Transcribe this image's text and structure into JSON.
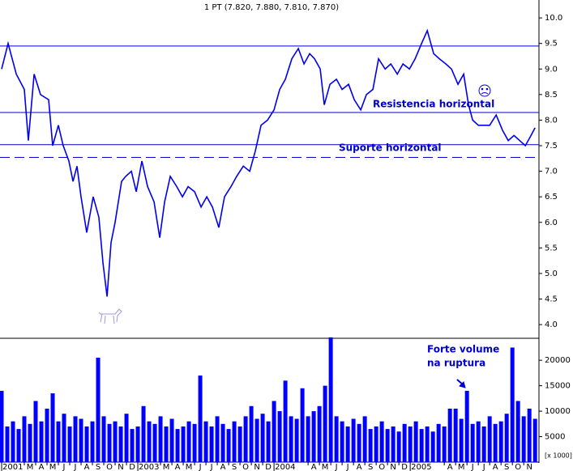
{
  "chart_data": [
    {
      "type": "line",
      "title": "1 PT (7.820, 7.880, 7.810, 7.870)",
      "color": "#0000ee",
      "x": [
        0,
        0.57,
        1.29,
        2,
        2.36,
        2.86,
        3.43,
        4.14,
        4.5,
        5,
        5.43,
        5.93,
        6.29,
        6.64,
        7,
        7.5,
        8.07,
        8.57,
        8.93,
        9.29,
        9.64,
        10,
        10.57,
        10.93,
        11.43,
        11.86,
        12.36,
        12.86,
        13.43,
        13.93,
        14.36,
        14.86,
        15.43,
        15.93,
        16.43,
        17,
        17.57,
        18.07,
        18.57,
        19.14,
        19.64,
        20.21,
        20.71,
        21.29,
        21.86,
        22.36,
        22.86,
        23.43,
        24,
        24.5,
        25,
        25.57,
        26.14,
        26.64,
        27.14,
        27.57,
        28.07,
        28.43,
        28.93,
        29.5,
        30,
        30.57,
        31.07,
        31.64,
        32.14,
        32.71,
        33.21,
        33.79,
        34.29,
        34.86,
        35.36,
        35.93,
        36.43,
        37,
        37.5,
        38.07,
        38.57,
        39.14,
        39.64,
        40.21,
        40.71,
        41.14,
        41.5,
        42,
        42.5,
        43,
        43.57,
        44.14,
        44.64,
        45.14,
        45.64,
        46.14,
        46.64,
        47
      ],
      "values": [
        9.0,
        9.5,
        8.9,
        8.6,
        7.6,
        8.9,
        8.5,
        8.4,
        7.5,
        7.9,
        7.5,
        7.2,
        6.8,
        7.1,
        6.5,
        5.8,
        6.5,
        6.1,
        5.2,
        4.55,
        5.6,
        6.0,
        6.8,
        6.9,
        7.0,
        6.6,
        7.2,
        6.7,
        6.4,
        5.7,
        6.4,
        6.9,
        6.7,
        6.5,
        6.7,
        6.6,
        6.3,
        6.5,
        6.3,
        5.9,
        6.5,
        6.7,
        6.9,
        7.1,
        7.0,
        7.4,
        7.9,
        8.0,
        8.2,
        8.6,
        8.8,
        9.2,
        9.4,
        9.1,
        9.3,
        9.2,
        9.0,
        8.3,
        8.7,
        8.8,
        8.6,
        8.7,
        8.4,
        8.2,
        8.5,
        8.6,
        9.2,
        9.0,
        9.1,
        8.9,
        9.1,
        9.0,
        9.2,
        9.5,
        9.75,
        9.3,
        9.2,
        9.1,
        9.0,
        8.7,
        8.9,
        8.3,
        8.0,
        7.9,
        7.9,
        7.9,
        8.1,
        7.8,
        7.6,
        7.7,
        7.6,
        7.5,
        7.7,
        7.85
      ],
      "xlim": [
        0,
        47.2
      ],
      "ylim": [
        3.78,
        10.35
      ],
      "yticks": [
        {
          "value": 10,
          "label": "10.0"
        },
        {
          "value": 9.5,
          "label": "9.5"
        },
        {
          "value": 9,
          "label": "9.0"
        },
        {
          "value": 8.5,
          "label": "8.5"
        },
        {
          "value": 8,
          "label": "8.0"
        },
        {
          "value": 7.5,
          "label": "7.5"
        },
        {
          "value": 7,
          "label": "7.0"
        },
        {
          "value": 6.5,
          "label": "6.5"
        },
        {
          "value": 6,
          "label": "6.0"
        },
        {
          "value": 5.5,
          "label": "5.5"
        },
        {
          "value": 5,
          "label": "5.0"
        },
        {
          "value": 4.5,
          "label": "4.5"
        },
        {
          "value": 4,
          "label": "4.0"
        }
      ],
      "reference_lines": [
        {
          "value": 9.45,
          "style": "solid"
        },
        {
          "value": 8.15,
          "style": "solid"
        },
        {
          "value": 7.52,
          "style": "solid"
        },
        {
          "value": 7.27,
          "style": "dashed"
        }
      ],
      "annotations": [
        "Resistencia horizontal",
        "Suporte horizontal"
      ]
    },
    {
      "type": "bar",
      "color": "#0000ff",
      "y_unit_label": "[x 1000]",
      "x": [
        0,
        0.5,
        1,
        1.5,
        2,
        2.5,
        3,
        3.5,
        4,
        4.5,
        5,
        5.5,
        6,
        6.5,
        7,
        7.5,
        8,
        8.5,
        9,
        9.5,
        10,
        10.5,
        11,
        11.5,
        12,
        12.5,
        13,
        13.5,
        14,
        14.5,
        15,
        15.5,
        16,
        16.5,
        17,
        17.5,
        18,
        18.5,
        19,
        19.5,
        20,
        20.5,
        21,
        21.5,
        22,
        22.5,
        23,
        23.5,
        24,
        24.5,
        25,
        25.5,
        26,
        26.5,
        27,
        27.5,
        28,
        28.5,
        29,
        29.5,
        30,
        30.5,
        31,
        31.5,
        32,
        32.5,
        33,
        33.5,
        34,
        34.5,
        35,
        35.5,
        36,
        36.5,
        37,
        37.5,
        38,
        38.5,
        39,
        39.5,
        40,
        40.5,
        41,
        41.5,
        42,
        42.5,
        43,
        43.5,
        44,
        44.5,
        45,
        45.5,
        46,
        46.5,
        47
      ],
      "values": [
        14000,
        7000,
        8000,
        6500,
        9000,
        7500,
        12000,
        8000,
        10500,
        13500,
        8000,
        9500,
        7000,
        9000,
        8500,
        7000,
        8000,
        20500,
        9000,
        7500,
        8000,
        7000,
        9500,
        6500,
        7000,
        11000,
        8000,
        7500,
        9000,
        7000,
        8500,
        6500,
        7000,
        8000,
        7500,
        17000,
        8000,
        7000,
        9000,
        7500,
        6500,
        8000,
        7000,
        9000,
        11000,
        8500,
        9500,
        8000,
        12000,
        10000,
        16000,
        9000,
        8500,
        14500,
        9000,
        10000,
        11000,
        15000,
        24500,
        9000,
        8000,
        7000,
        8500,
        7500,
        9000,
        6500,
        7000,
        8000,
        6500,
        7000,
        6000,
        7500,
        7000,
        8000,
        6500,
        7000,
        6000,
        7500,
        7000,
        10500,
        10500,
        8500,
        14000,
        7500,
        8000,
        7000,
        9000,
        7500,
        8000,
        9500,
        22500,
        12000,
        9000,
        10500,
        8500
      ],
      "xlim": [
        0,
        47.2
      ],
      "ylim": [
        0,
        24000
      ],
      "yticks": [
        20000,
        15000,
        10000,
        5000
      ],
      "xticks": [
        {
          "value": 0,
          "label": "2001"
        },
        {
          "value": 2,
          "label": "M"
        },
        {
          "value": 3,
          "label": "A"
        },
        {
          "value": 4,
          "label": "M"
        },
        {
          "value": 5,
          "label": "J"
        },
        {
          "value": 6,
          "label": "J"
        },
        {
          "value": 7,
          "label": "A"
        },
        {
          "value": 8,
          "label": "S"
        },
        {
          "value": 9,
          "label": "O"
        },
        {
          "value": 10,
          "label": "N"
        },
        {
          "value": 11,
          "label": "D"
        },
        {
          "value": 12,
          "label": "2003"
        },
        {
          "value": 14,
          "label": "M"
        },
        {
          "value": 15,
          "label": "A"
        },
        {
          "value": 16,
          "label": "M"
        },
        {
          "value": 17,
          "label": "J"
        },
        {
          "value": 18,
          "label": "J"
        },
        {
          "value": 19,
          "label": "A"
        },
        {
          "value": 20,
          "label": "S"
        },
        {
          "value": 21,
          "label": "O"
        },
        {
          "value": 22,
          "label": "N"
        },
        {
          "value": 23,
          "label": "D"
        },
        {
          "value": 24,
          "label": "2004"
        },
        {
          "value": 27,
          "label": "A"
        },
        {
          "value": 28,
          "label": "M"
        },
        {
          "value": 29,
          "label": "J"
        },
        {
          "value": 30,
          "label": "J"
        },
        {
          "value": 31,
          "label": "A"
        },
        {
          "value": 32,
          "label": "S"
        },
        {
          "value": 33,
          "label": "O"
        },
        {
          "value": 34,
          "label": "N"
        },
        {
          "value": 35,
          "label": "D"
        },
        {
          "value": 36,
          "label": "2005"
        },
        {
          "value": 39,
          "label": "A"
        },
        {
          "value": 40,
          "label": "M"
        },
        {
          "value": 41,
          "label": "J"
        },
        {
          "value": 42,
          "label": "J"
        },
        {
          "value": 43,
          "label": "A"
        },
        {
          "value": 44,
          "label": "S"
        },
        {
          "value": 45,
          "label": "O"
        },
        {
          "value": 46,
          "label": "N"
        }
      ],
      "annotations": [
        "Forte volume",
        "na ruptura"
      ]
    }
  ]
}
